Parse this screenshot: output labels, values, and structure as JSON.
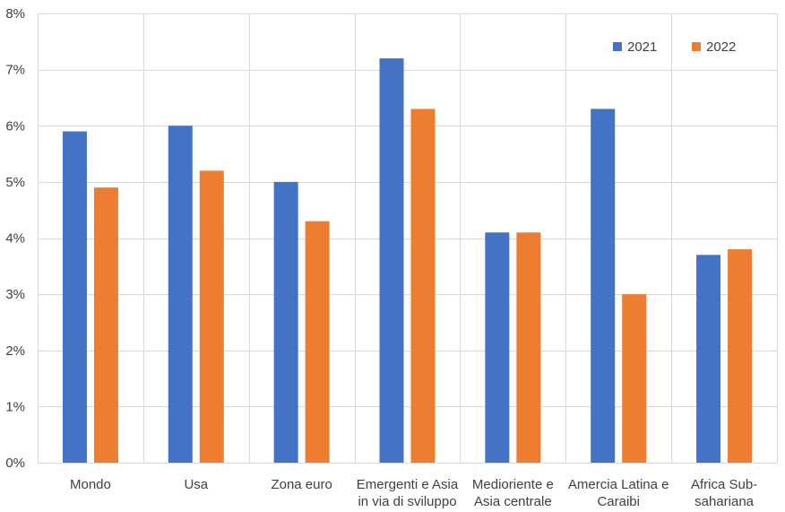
{
  "chart_data": {
    "type": "bar",
    "categories": [
      [
        "Mondo"
      ],
      [
        "Usa"
      ],
      [
        "Zona euro"
      ],
      [
        "Emergenti e Asia",
        "in via di sviluppo"
      ],
      [
        "Medioriente e",
        "Asia centrale"
      ],
      [
        "Amercia Latina e",
        "Caraibi"
      ],
      [
        "Africa Sub-",
        "sahariana"
      ]
    ],
    "series": [
      {
        "name": "2021",
        "color": "#4472C4",
        "values": [
          5.9,
          6.0,
          5.0,
          7.2,
          4.1,
          6.3,
          3.7
        ]
      },
      {
        "name": "2022",
        "color": "#ED7D31",
        "values": [
          4.9,
          5.2,
          4.3,
          6.3,
          4.1,
          3.0,
          3.8
        ]
      }
    ],
    "ylim": [
      0,
      8
    ],
    "yticks": [
      0,
      1,
      2,
      3,
      4,
      5,
      6,
      7,
      8
    ],
    "ytick_format": "percent",
    "grid": true,
    "gridline_color": "#D9D9D9",
    "legend_position": "top-right",
    "title": "",
    "xlabel": "",
    "ylabel": ""
  }
}
